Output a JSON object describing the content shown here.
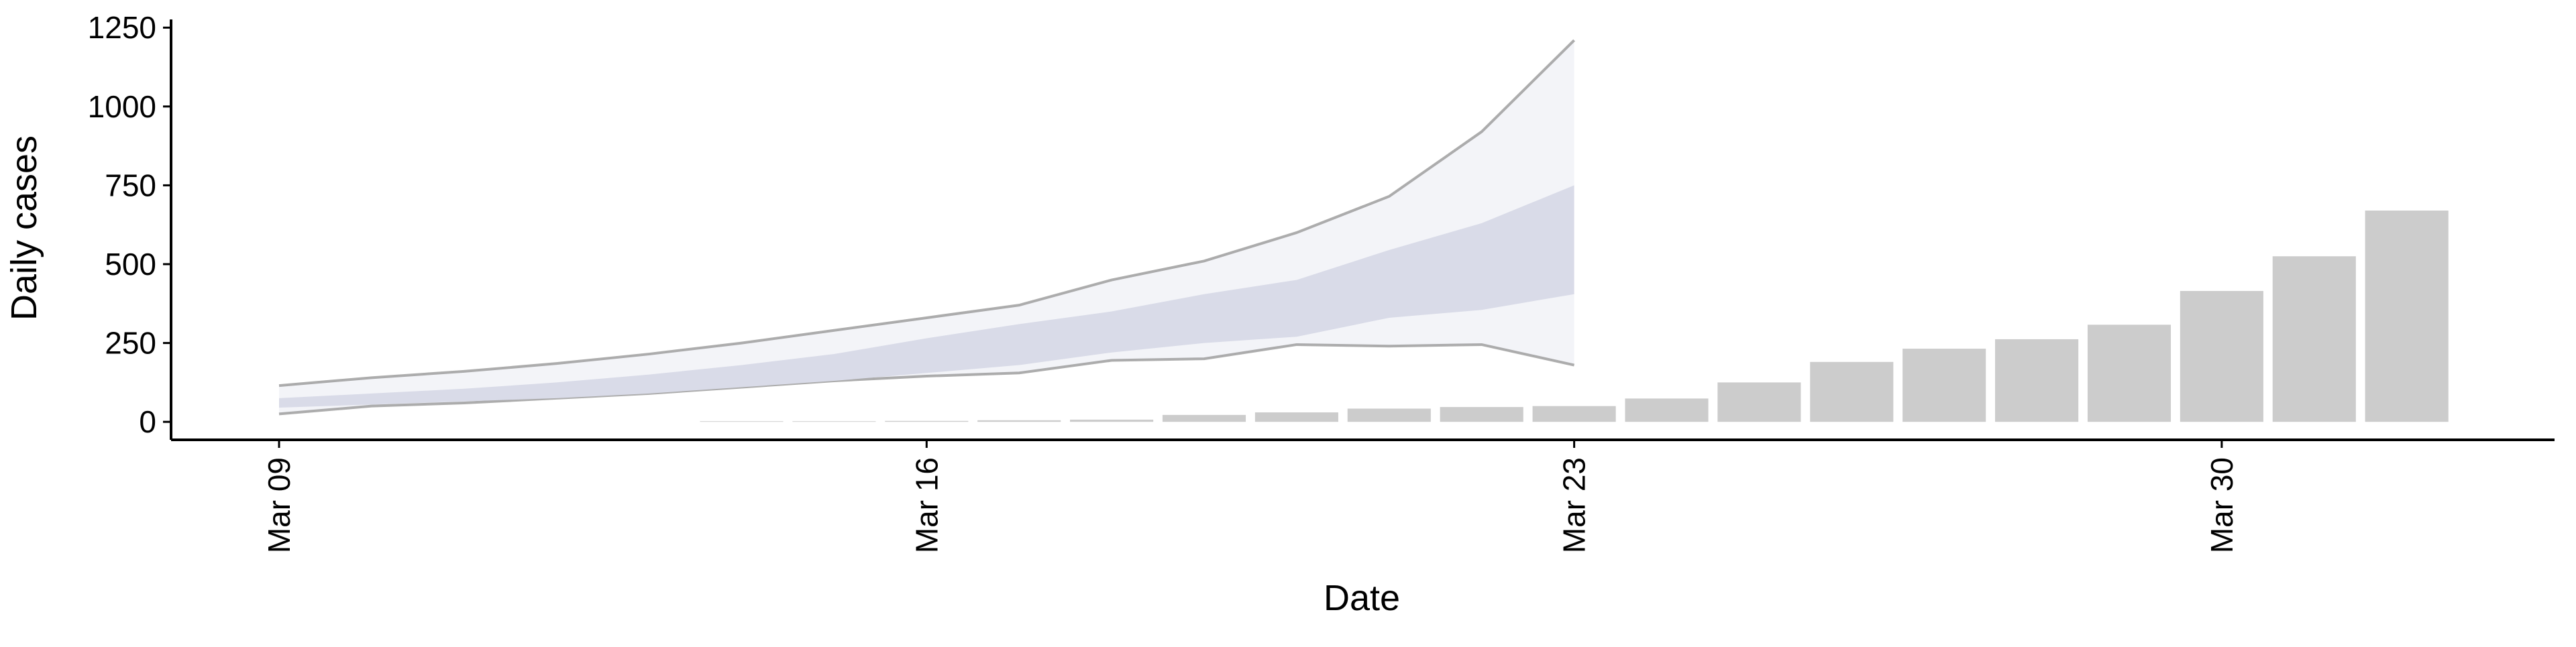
{
  "chart_data": {
    "type": "bar",
    "x_label": "Date",
    "y_label": "Daily cases",
    "categories": [
      "Mar 09",
      null,
      null,
      null,
      null,
      null,
      null,
      "Mar 16",
      null,
      null,
      null,
      null,
      null,
      null,
      "Mar 23",
      null,
      null,
      null,
      null,
      null,
      null,
      "Mar 30",
      null,
      null
    ],
    "series": [
      {
        "color": "#cccccc",
        "values": [
          null,
          null,
          null,
          null,
          null,
          2,
          2,
          3,
          5,
          7,
          22,
          30,
          42,
          47,
          50,
          74,
          125,
          190,
          232,
          262,
          308,
          415,
          525,
          670
        ]
      }
    ],
    "bands": [
      {
        "color": "#f3f4f8",
        "line_color": "#999999",
        "lower": [
          25,
          50,
          60,
          75,
          90,
          110,
          130,
          145,
          155,
          195,
          200,
          245,
          240,
          245,
          180,
          null,
          null,
          null,
          null,
          null,
          null,
          null,
          null,
          null
        ],
        "upper": [
          115,
          140,
          160,
          185,
          215,
          250,
          290,
          330,
          370,
          450,
          510,
          600,
          715,
          920,
          1210,
          null,
          null,
          null,
          null,
          null,
          null,
          null,
          null,
          null
        ]
      },
      {
        "color": "#d9dbe8",
        "lower": [
          45,
          55,
          65,
          75,
          90,
          110,
          130,
          155,
          180,
          220,
          250,
          270,
          330,
          355,
          405,
          null,
          null,
          null,
          null,
          null,
          null,
          null,
          null,
          null
        ],
        "upper": [
          75,
          90,
          105,
          125,
          150,
          180,
          215,
          265,
          310,
          350,
          405,
          450,
          545,
          630,
          750,
          null,
          null,
          null,
          null,
          null,
          null,
          null,
          null,
          null
        ]
      }
    ],
    "ylim": [
      -57,
      1276
    ],
    "yticks": [
      0,
      250,
      500,
      750,
      1000,
      1250
    ],
    "grid": false
  }
}
